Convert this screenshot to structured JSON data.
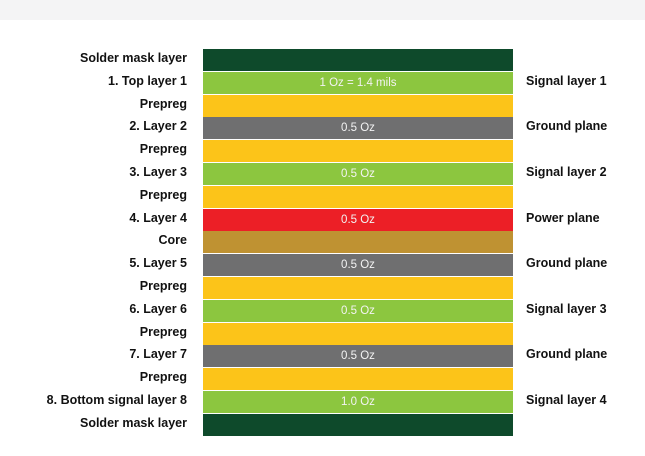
{
  "colors": {
    "solder_mask": "#0e4a2b",
    "signal": "#8cc63f",
    "prepreg": "#fcc419",
    "ground": "#6f6f70",
    "power": "#ec1f26",
    "core": "#bf9232"
  },
  "layers": [
    {
      "left": "Solder mask layer",
      "center": "",
      "right": "",
      "kind": "solder_mask"
    },
    {
      "left": "1. Top layer 1",
      "center": "1 Oz = 1.4 mils",
      "right": "Signal layer 1",
      "kind": "signal"
    },
    {
      "left": "Prepreg",
      "center": "",
      "right": "",
      "kind": "prepreg"
    },
    {
      "left": "2. Layer 2",
      "center": "0.5 Oz",
      "right": "Ground plane",
      "kind": "ground"
    },
    {
      "left": "Prepreg",
      "center": "",
      "right": "",
      "kind": "prepreg"
    },
    {
      "left": "3. Layer 3",
      "center": "0.5 Oz",
      "right": "Signal layer 2",
      "kind": "signal"
    },
    {
      "left": "Prepreg",
      "center": "",
      "right": "",
      "kind": "prepreg"
    },
    {
      "left": "4. Layer 4",
      "center": "0.5 Oz",
      "right": "Power plane",
      "kind": "power"
    },
    {
      "left": "Core",
      "center": "",
      "right": "",
      "kind": "core"
    },
    {
      "left": "5. Layer 5",
      "center": "0.5 Oz",
      "right": "Ground plane",
      "kind": "ground"
    },
    {
      "left": "Prepreg",
      "center": "",
      "right": "",
      "kind": "prepreg"
    },
    {
      "left": "6. Layer 6",
      "center": "0.5 Oz",
      "right": "Signal layer 3",
      "kind": "signal"
    },
    {
      "left": "Prepreg",
      "center": "",
      "right": "",
      "kind": "prepreg"
    },
    {
      "left": "7. Layer 7",
      "center": "0.5 Oz",
      "right": "Ground plane",
      "kind": "ground"
    },
    {
      "left": "Prepreg",
      "center": "",
      "right": "",
      "kind": "prepreg"
    },
    {
      "left": "8. Bottom signal layer 8",
      "center": "1.0 Oz",
      "right": "Signal layer 4",
      "kind": "signal"
    },
    {
      "left": "Solder mask layer",
      "center": "",
      "right": "",
      "kind": "solder_mask"
    }
  ]
}
